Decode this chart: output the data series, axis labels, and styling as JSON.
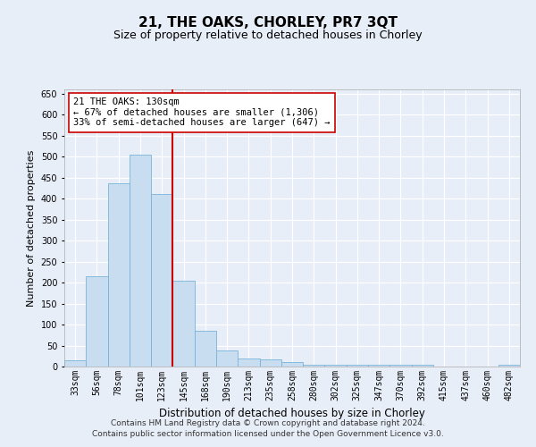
{
  "title": "21, THE OAKS, CHORLEY, PR7 3QT",
  "subtitle": "Size of property relative to detached houses in Chorley",
  "xlabel": "Distribution of detached houses by size in Chorley",
  "ylabel": "Number of detached properties",
  "categories": [
    "33sqm",
    "56sqm",
    "78sqm",
    "101sqm",
    "123sqm",
    "145sqm",
    "168sqm",
    "190sqm",
    "213sqm",
    "235sqm",
    "258sqm",
    "280sqm",
    "302sqm",
    "325sqm",
    "347sqm",
    "370sqm",
    "392sqm",
    "415sqm",
    "437sqm",
    "460sqm",
    "482sqm"
  ],
  "values": [
    15,
    215,
    437,
    505,
    410,
    205,
    85,
    38,
    20,
    18,
    10,
    5,
    5,
    5,
    5,
    5,
    5,
    1,
    1,
    1,
    5
  ],
  "bar_color": "#c9ddf0",
  "bar_edge_color": "#7ab3d8",
  "vline_color": "#cc0000",
  "annotation_text": "21 THE OAKS: 130sqm\n← 67% of detached houses are smaller (1,306)\n33% of semi-detached houses are larger (647) →",
  "annotation_box_color": "white",
  "annotation_box_edge_color": "#cc0000",
  "ylim": [
    0,
    660
  ],
  "yticks": [
    0,
    50,
    100,
    150,
    200,
    250,
    300,
    350,
    400,
    450,
    500,
    550,
    600,
    650
  ],
  "background_color": "#e8eef8",
  "plot_bg_color": "#e8eef8",
  "footer_text": "Contains HM Land Registry data © Crown copyright and database right 2024.\nContains public sector information licensed under the Open Government Licence v3.0.",
  "title_fontsize": 11,
  "subtitle_fontsize": 9,
  "xlabel_fontsize": 8.5,
  "ylabel_fontsize": 8,
  "tick_fontsize": 7,
  "annotation_fontsize": 7.5,
  "footer_fontsize": 6.5,
  "vline_pos": 4.5
}
